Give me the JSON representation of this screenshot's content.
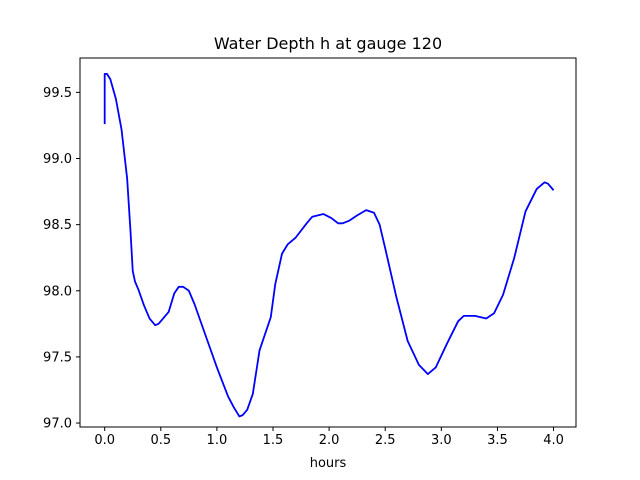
{
  "colors": {
    "line": "#0000ff",
    "axes": "#000000",
    "background": "#ffffff"
  },
  "chart_data": {
    "type": "line",
    "title": "Water Depth h at gauge 120",
    "xlabel": "hours",
    "ylabel": "",
    "xlim": [
      -0.22,
      4.2
    ],
    "ylim": [
      96.97,
      99.76
    ],
    "grid": false,
    "xticks": [
      0.0,
      0.5,
      1.0,
      1.5,
      2.0,
      2.5,
      3.0,
      3.5,
      4.0
    ],
    "xtick_labels": [
      "0.0",
      "0.5",
      "1.0",
      "1.5",
      "2.0",
      "2.5",
      "3.0",
      "3.5",
      "4.0"
    ],
    "yticks": [
      97.0,
      97.5,
      98.0,
      98.5,
      99.0,
      99.5
    ],
    "ytick_labels": [
      "97.0",
      "97.5",
      "98.0",
      "98.5",
      "99.0",
      "99.5"
    ],
    "series": [
      {
        "x": [
          0.0,
          0.0,
          0.02,
          0.05,
          0.1,
          0.15,
          0.2,
          0.23,
          0.25,
          0.27,
          0.3,
          0.35,
          0.4,
          0.45,
          0.48,
          0.52,
          0.57,
          0.62,
          0.66,
          0.7,
          0.75,
          0.8,
          0.9,
          1.0,
          1.1,
          1.15,
          1.2,
          1.23,
          1.27,
          1.32,
          1.38,
          1.42,
          1.48,
          1.52,
          1.58,
          1.63,
          1.7,
          1.8,
          1.85,
          1.95,
          2.02,
          2.08,
          2.12,
          2.18,
          2.25,
          2.33,
          2.4,
          2.45,
          2.5,
          2.6,
          2.7,
          2.8,
          2.88,
          2.95,
          3.05,
          3.15,
          3.2,
          3.3,
          3.4,
          3.47,
          3.55,
          3.65,
          3.75,
          3.85,
          3.92,
          3.95,
          4.0
        ],
        "y": [
          99.26,
          99.64,
          99.64,
          99.6,
          99.45,
          99.22,
          98.85,
          98.45,
          98.15,
          98.07,
          98.01,
          97.89,
          97.79,
          97.74,
          97.75,
          97.79,
          97.84,
          97.98,
          98.03,
          98.03,
          98.0,
          97.9,
          97.66,
          97.42,
          97.2,
          97.12,
          97.05,
          97.06,
          97.1,
          97.22,
          97.55,
          97.65,
          97.8,
          98.05,
          98.28,
          98.35,
          98.4,
          98.51,
          98.56,
          98.58,
          98.55,
          98.51,
          98.51,
          98.53,
          98.57,
          98.61,
          98.59,
          98.5,
          98.32,
          97.95,
          97.62,
          97.44,
          97.37,
          97.42,
          97.6,
          97.77,
          97.81,
          97.81,
          97.79,
          97.83,
          97.97,
          98.25,
          98.6,
          98.77,
          98.82,
          98.81,
          98.76
        ]
      }
    ]
  }
}
